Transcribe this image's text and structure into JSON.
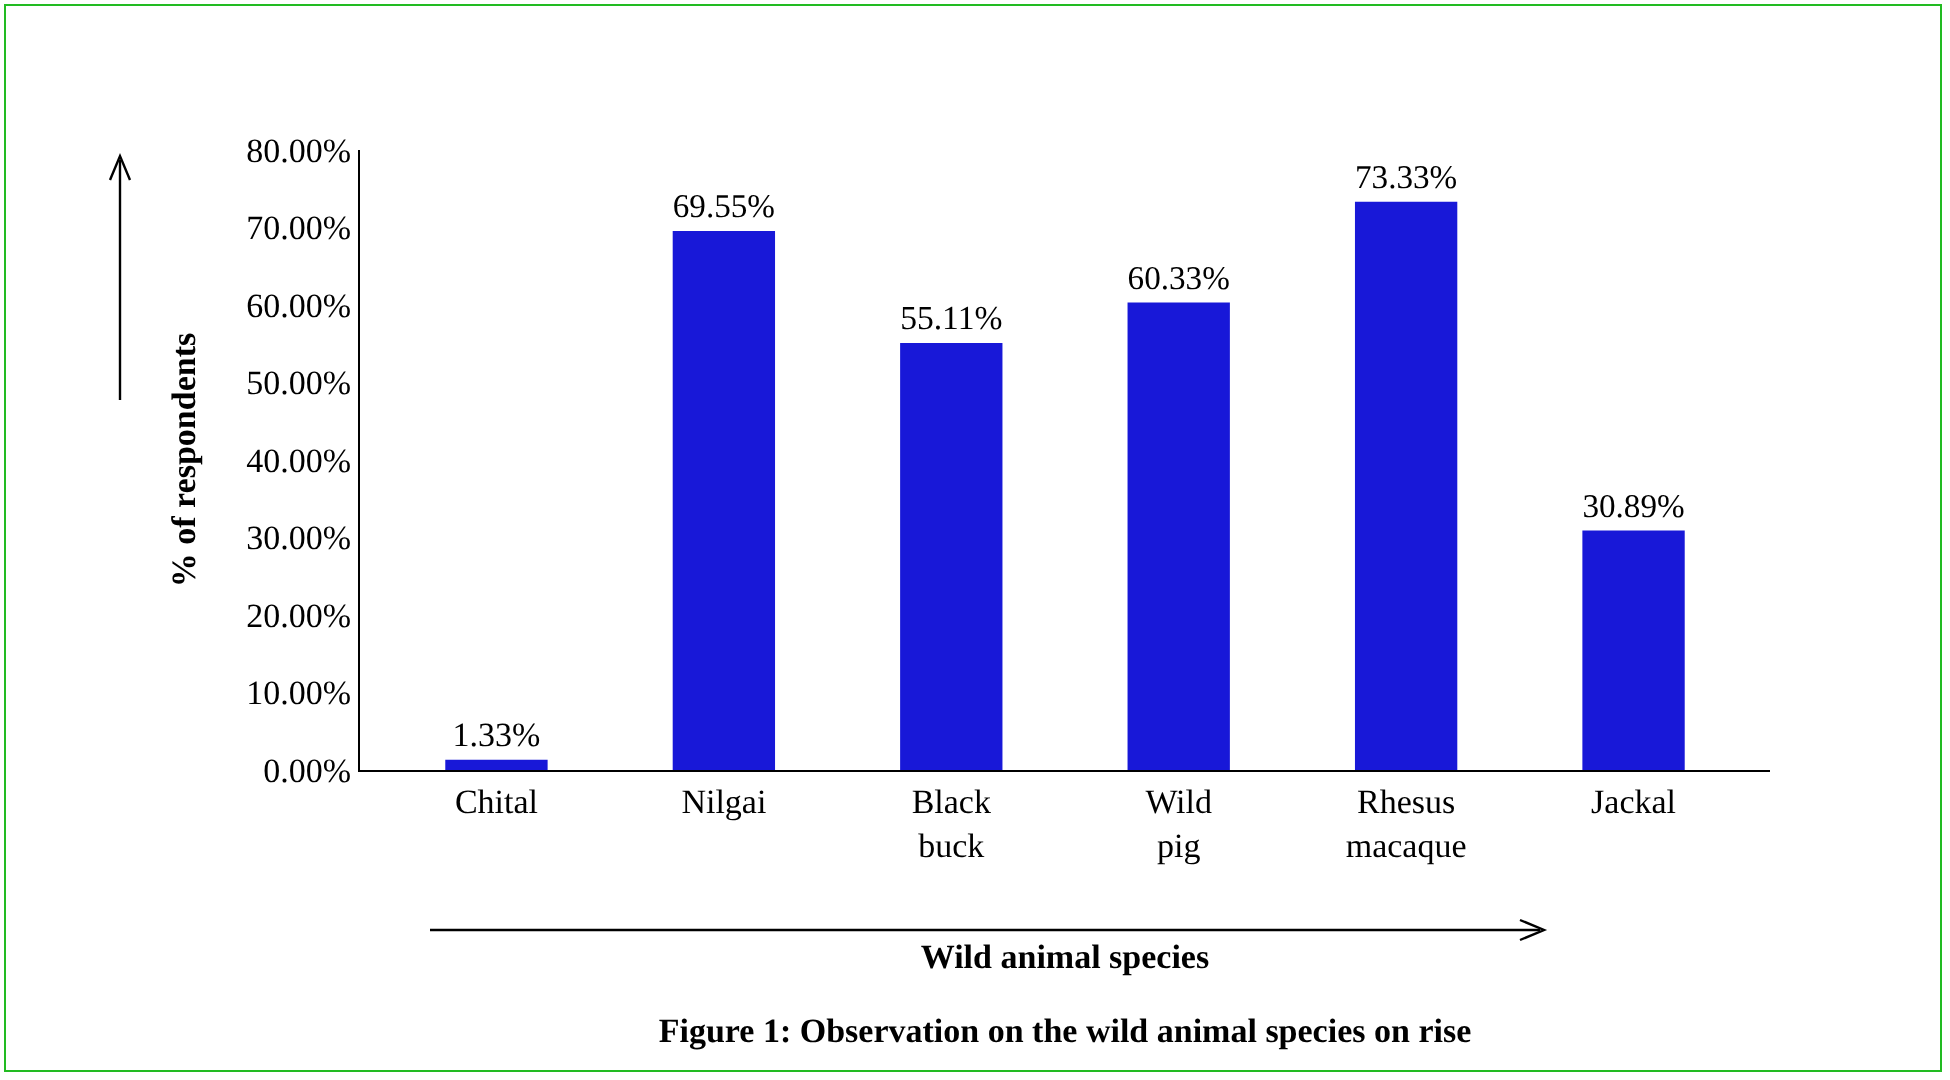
{
  "chart_data": {
    "type": "bar",
    "title": "Figure 1: Observation on the wild animal species on rise",
    "xlabel": "Wild animal species",
    "ylabel": "% of respondents",
    "categories": [
      "Chital",
      "Nilgai",
      "Black buck",
      "Wild pig",
      "Rhesus macaque",
      "Jackal"
    ],
    "values": [
      1.33,
      69.55,
      55.11,
      60.33,
      73.33,
      30.89
    ],
    "value_labels": [
      "1.33%",
      "69.55%",
      "55.11%",
      "60.33%",
      "73.33%",
      "30.89%"
    ],
    "color": "#1818d8",
    "ylim": [
      0,
      80
    ],
    "yticks": [
      {
        "value": 0,
        "label": "0.00%"
      },
      {
        "value": 10,
        "label": "10.00%"
      },
      {
        "value": 20,
        "label": "20.00%"
      },
      {
        "value": 30,
        "label": "30.00%"
      },
      {
        "value": 40,
        "label": "40.00%"
      },
      {
        "value": 50,
        "label": "50.00%"
      },
      {
        "value": 60,
        "label": "60.00%"
      },
      {
        "value": 70,
        "label": "70.00%"
      },
      {
        "value": 80,
        "label": "80.00%"
      }
    ],
    "grid": false,
    "legend": false
  }
}
